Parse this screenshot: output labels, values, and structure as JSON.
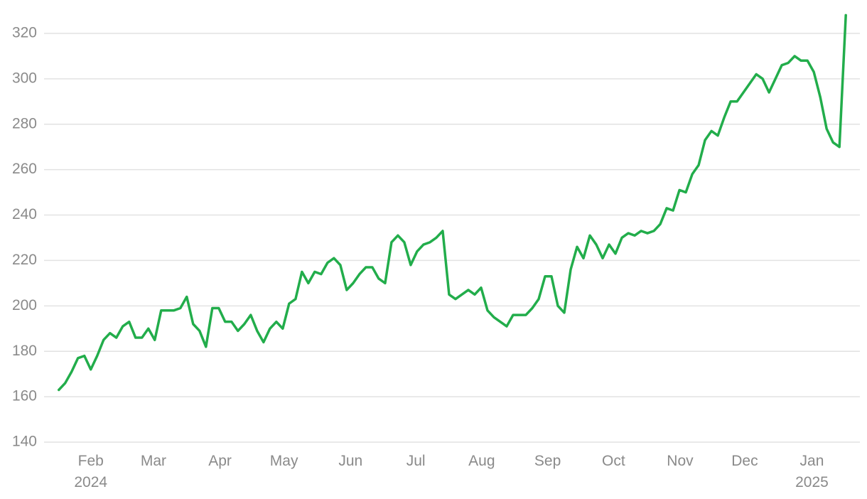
{
  "chart_data": {
    "type": "line",
    "series": [
      {
        "color": "#22ad4b",
        "values": [
          163,
          166,
          171,
          177,
          178,
          172,
          178,
          185,
          188,
          186,
          191,
          193,
          186,
          186,
          190,
          185,
          198,
          198,
          198,
          199,
          204,
          192,
          189,
          182,
          199,
          199,
          193,
          193,
          189,
          192,
          196,
          189,
          184,
          190,
          193,
          190,
          201,
          203,
          215,
          210,
          215,
          214,
          219,
          221,
          218,
          207,
          210,
          214,
          217,
          217,
          212,
          210,
          228,
          231,
          228,
          218,
          224,
          227,
          228,
          230,
          233,
          205,
          203,
          205,
          207,
          205,
          208,
          198,
          195,
          193,
          191,
          196,
          196,
          196,
          199,
          203,
          213,
          213,
          200,
          197,
          216,
          226,
          221,
          231,
          227,
          221,
          227,
          223,
          230,
          232,
          231,
          233,
          232,
          233,
          236,
          243,
          242,
          251,
          250,
          258,
          262,
          273,
          277,
          275,
          283,
          290,
          290,
          294,
          298,
          302,
          300,
          294,
          300,
          306,
          307,
          310,
          308,
          308,
          303,
          292,
          278,
          272,
          270,
          328
        ]
      }
    ],
    "xlim": [
      -2.3,
      125.2
    ],
    "xticks": [
      {
        "value": 5,
        "label": "Feb\n2024"
      },
      {
        "value": 14.8,
        "label": "Mar"
      },
      {
        "value": 25.2,
        "label": "Apr"
      },
      {
        "value": 35.2,
        "label": "May"
      },
      {
        "value": 45.6,
        "label": "Jun"
      },
      {
        "value": 55.8,
        "label": "Jul"
      },
      {
        "value": 66.1,
        "label": "Aug"
      },
      {
        "value": 76.4,
        "label": "Sep"
      },
      {
        "value": 86.7,
        "label": "Oct"
      },
      {
        "value": 97.1,
        "label": "Nov"
      },
      {
        "value": 107.2,
        "label": "Dec"
      },
      {
        "value": 117.7,
        "label": "Jan\n2025"
      }
    ],
    "ylim": [
      140,
      330
    ],
    "yticks": [
      140,
      160,
      180,
      200,
      220,
      240,
      260,
      280,
      300,
      320
    ],
    "grid": true
  }
}
